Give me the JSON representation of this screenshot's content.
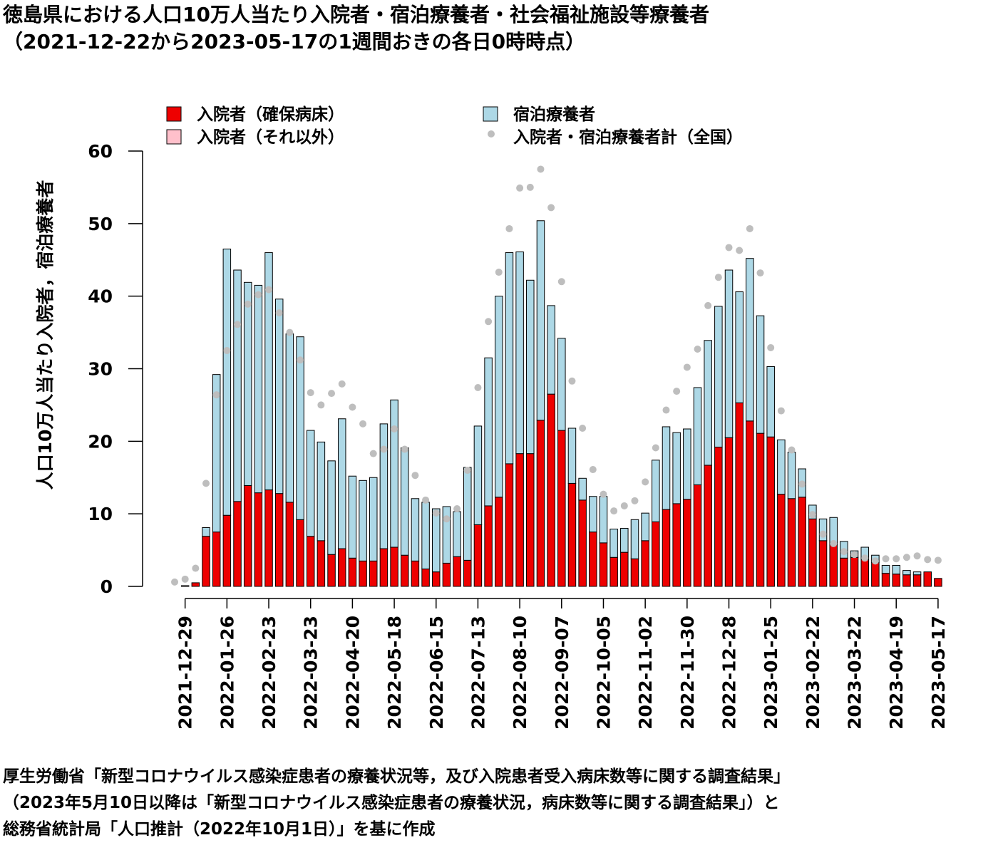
{
  "title": {
    "line1": "徳島県における人口10万人当たり入院者・宿泊療養者・社会福祉施設等療養者",
    "line2": "（2021-12-22から2023-05-17の1週間おきの各日0時時点）"
  },
  "source": {
    "line1": "厚生労働省「新型コロナウイルス感染症患者の療養状況等，及び入院患者受入病床数等に関する調査結果」",
    "line2": "（2023年5月10日以降は「新型コロナウイルス感染症患者の療養状況，病床数等に関する調査結果」）と",
    "line3": "総務省統計局「人口推計（2022年10月1日）」を基に作成"
  },
  "colors": {
    "hospital_secured": "#ee0000",
    "hospital_other": "#ffc0cb",
    "lodging": "#add8e6",
    "national": "#bebebe"
  },
  "chart_data": {
    "type": "bar",
    "stacked": true,
    "ylabel": "人口10万人当たり入院者，宿泊療養者",
    "ylim": [
      0,
      60
    ],
    "yticks": [
      0,
      10,
      20,
      30,
      40,
      50,
      60
    ],
    "x": [
      "2021-12-22",
      "2021-12-29",
      "2022-01-05",
      "2022-01-12",
      "2022-01-19",
      "2022-01-26",
      "2022-02-02",
      "2022-02-09",
      "2022-02-16",
      "2022-02-23",
      "2022-03-02",
      "2022-03-09",
      "2022-03-16",
      "2022-03-23",
      "2022-03-30",
      "2022-04-06",
      "2022-04-13",
      "2022-04-20",
      "2022-04-27",
      "2022-05-04",
      "2022-05-11",
      "2022-05-18",
      "2022-05-25",
      "2022-06-01",
      "2022-06-08",
      "2022-06-15",
      "2022-06-22",
      "2022-06-29",
      "2022-07-06",
      "2022-07-13",
      "2022-07-20",
      "2022-07-27",
      "2022-08-03",
      "2022-08-10",
      "2022-08-17",
      "2022-08-24",
      "2022-08-31",
      "2022-09-07",
      "2022-09-14",
      "2022-09-21",
      "2022-09-28",
      "2022-10-05",
      "2022-10-12",
      "2022-10-19",
      "2022-10-26",
      "2022-11-02",
      "2022-11-09",
      "2022-11-16",
      "2022-11-23",
      "2022-11-30",
      "2022-12-07",
      "2022-12-14",
      "2022-12-21",
      "2022-12-28",
      "2023-01-04",
      "2023-01-11",
      "2023-01-18",
      "2023-01-25",
      "2023-02-01",
      "2023-02-08",
      "2023-02-15",
      "2023-02-22",
      "2023-03-01",
      "2023-03-08",
      "2023-03-15",
      "2023-03-22",
      "2023-03-29",
      "2023-04-05",
      "2023-04-12",
      "2023-04-19",
      "2023-04-26",
      "2023-05-03",
      "2023-05-10",
      "2023-05-17"
    ],
    "xtick_labels": [
      "2021-12-29",
      "2022-01-26",
      "2022-02-23",
      "2022-03-23",
      "2022-04-20",
      "2022-05-18",
      "2022-06-15",
      "2022-07-13",
      "2022-08-10",
      "2022-09-07",
      "2022-10-05",
      "2022-11-02",
      "2022-11-30",
      "2022-12-28",
      "2023-01-25",
      "2023-02-22",
      "2023-03-22",
      "2023-04-19",
      "2023-05-17"
    ],
    "legend": {
      "placement": "top",
      "entries": [
        "入院者（確保病床）",
        "入院者（それ以外）",
        "宿泊療養者",
        "入院者・宿泊療養者計（全国）"
      ]
    },
    "series": [
      {
        "name": "入院者（確保病床）",
        "values": [
          0,
          0.1,
          0.5,
          6.9,
          7.5,
          9.8,
          11.7,
          13.9,
          12.9,
          13.3,
          12.8,
          11.6,
          9.2,
          6.9,
          6.3,
          4.4,
          5.2,
          3.9,
          3.5,
          3.5,
          5.2,
          5.4,
          4.3,
          3.5,
          2.4,
          2.0,
          3.2,
          4.1,
          3.6,
          8.5,
          11.1,
          12.3,
          16.9,
          18.3,
          18.3,
          22.9,
          26.5,
          21.5,
          14.2,
          11.9,
          7.5,
          6.0,
          4.0,
          4.7,
          3.8,
          6.3,
          8.9,
          10.6,
          11.4,
          12.0,
          14.0,
          16.7,
          19.2,
          20.5,
          25.3,
          22.8,
          21.1,
          20.6,
          12.7,
          12.1,
          12.3,
          9.3,
          6.3,
          5.7,
          3.9,
          4.0,
          3.7,
          3.3,
          1.8,
          1.7,
          1.6,
          1.6,
          2.0,
          1.1
        ]
      },
      {
        "name": "入院者（それ以外）",
        "values": [
          0,
          0,
          0,
          0,
          0,
          0,
          0,
          0,
          0,
          0,
          0,
          0,
          0,
          0,
          0,
          0,
          0,
          0,
          0,
          0,
          0,
          0,
          0,
          0,
          0,
          0,
          0,
          0,
          0,
          0,
          0,
          0,
          0,
          0,
          0,
          0,
          0,
          0,
          0,
          0,
          0,
          0,
          0,
          0,
          0,
          0,
          0,
          0,
          0,
          0,
          0,
          0,
          0,
          0,
          0,
          0,
          0,
          0,
          0,
          0,
          0,
          0,
          0,
          0,
          0,
          0,
          0,
          0,
          0,
          0,
          0,
          0,
          0,
          0
        ]
      },
      {
        "name": "宿泊療養者",
        "values": [
          0,
          0,
          0,
          1.2,
          21.7,
          36.7,
          31.9,
          28.0,
          28.6,
          32.7,
          26.8,
          23.2,
          25.2,
          14.6,
          13.6,
          12.9,
          17.9,
          11.3,
          11.1,
          11.5,
          17.2,
          20.3,
          14.8,
          8.6,
          9.2,
          8.7,
          7.8,
          6.2,
          12.8,
          13.6,
          20.4,
          27.7,
          29.1,
          27.8,
          23.9,
          27.5,
          12.2,
          12.7,
          7.6,
          3.0,
          4.9,
          6.4,
          3.9,
          3.3,
          5.4,
          3.8,
          8.5,
          11.4,
          9.8,
          9.7,
          13.4,
          17.2,
          19.4,
          23.1,
          15.3,
          22.4,
          16.2,
          9.7,
          7.5,
          6.4,
          3.9,
          1.9,
          3.0,
          3.8,
          2.3,
          0.9,
          1.7,
          1.0,
          1.1,
          1.2,
          0.6,
          0.4,
          0,
          0
        ]
      }
    ],
    "national_total": {
      "name": "入院者・宿泊療養者計（全国）",
      "values": [
        0.6,
        1.0,
        2.5,
        14.2,
        26.4,
        32.5,
        36.1,
        38.9,
        40.2,
        40.9,
        37.7,
        35.0,
        31.2,
        26.7,
        25.0,
        26.6,
        27.9,
        24.7,
        22.4,
        18.3,
        18.9,
        21.7,
        18.9,
        15.3,
        11.9,
        10.1,
        9.3,
        10.7,
        16.0,
        27.4,
        36.5,
        43.3,
        49.3,
        54.9,
        55.0,
        57.5,
        52.2,
        42.0,
        28.3,
        21.8,
        16.1,
        12.7,
        10.4,
        11.1,
        11.8,
        14.4,
        19.1,
        24.3,
        26.9,
        30.2,
        32.7,
        38.7,
        42.6,
        46.7,
        46.3,
        49.3,
        43.2,
        32.9,
        24.2,
        18.8,
        14.1,
        9.9,
        7.2,
        5.9,
        4.8,
        4.4,
        3.9,
        3.5,
        3.8,
        3.8,
        4.0,
        4.2,
        3.7,
        3.6
      ]
    }
  }
}
